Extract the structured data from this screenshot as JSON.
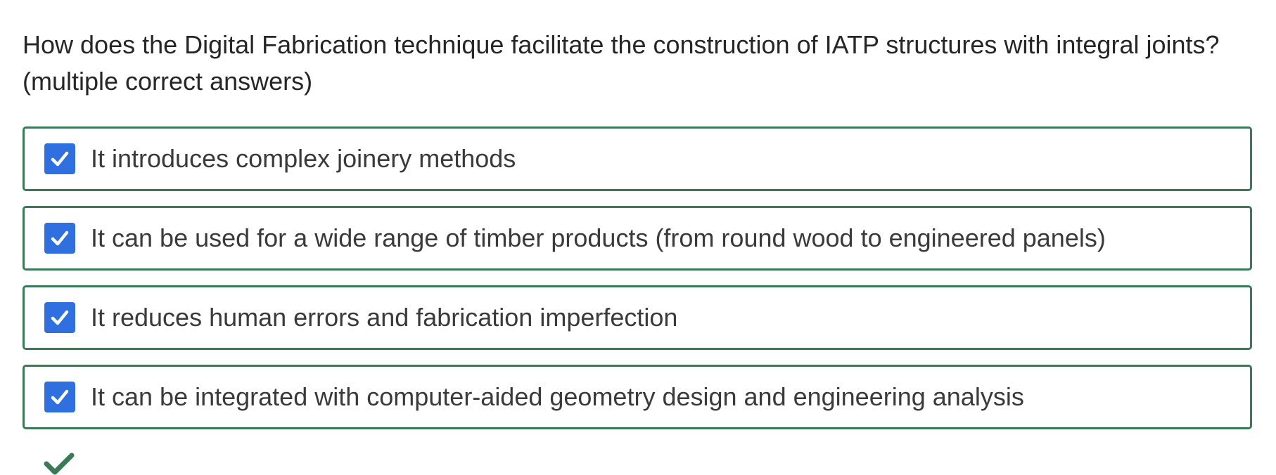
{
  "question": {
    "text": "How does the Digital Fabrication technique facilitate the construction of IATP structures with integral joints? (multiple correct answers)"
  },
  "options": [
    {
      "label": "It introduces complex joinery methods",
      "checked": true
    },
    {
      "label": "It can be used for a wide range of timber products (from round wood to engineered panels)",
      "checked": true
    },
    {
      "label": "It reduces human errors and fabrication imperfection",
      "checked": true
    },
    {
      "label": "It can be integrated with computer-aided geometry design and engineering analysis",
      "checked": true
    }
  ],
  "result": {
    "icon": "checkmark-icon",
    "status": "correct"
  },
  "colors": {
    "option_border": "#3b7a57",
    "checkbox_fill": "#2f6fe0",
    "result_check": "#3b7a57"
  }
}
